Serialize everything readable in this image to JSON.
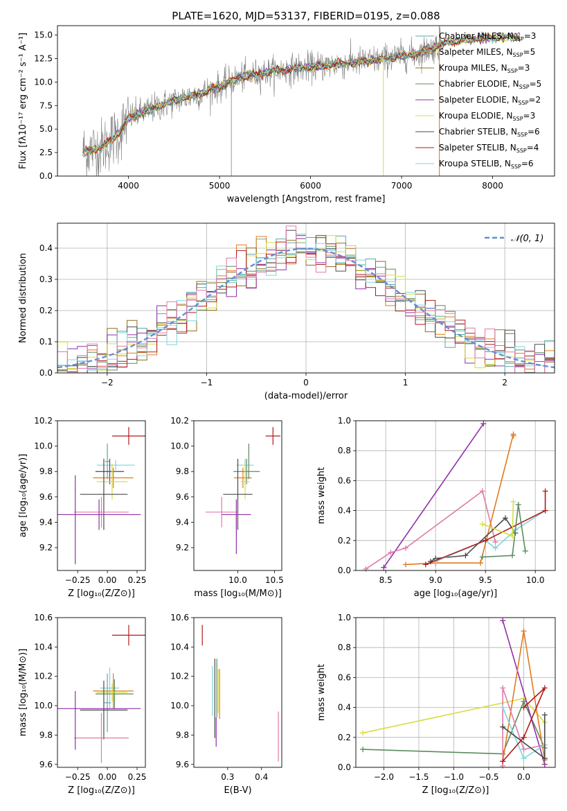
{
  "figure_title": "PLATE=1620, MJD=53137, FIBERID=0195, z=0.088",
  "colors": {
    "Chabrier MILES": "#5aa8a0",
    "Salpeter MILES": "#e07a1e",
    "Kroupa MILES": "#8c6d1a",
    "Chabrier ELODIE": "#5c8a5c",
    "Salpeter ELODIE": "#8e2fa6",
    "Kroupa ELODIE": "#d8dd40",
    "Chabrier STELIB": "#4a4a4a",
    "Salpeter STELIB": "#b01a1a",
    "Kroupa STELIB": "#7dd5db",
    "Kroupa ELODIE alt": "#e07aa8",
    "data": "#808080",
    "gaussian": "#5f8fd8"
  },
  "chart_data": [
    {
      "id": "spectrum",
      "type": "line",
      "title": "PLATE=1620, MJD=53137, FIBERID=0195, z=0.088",
      "xlabel": "wavelength [Angstrom, rest frame]",
      "ylabel": "Flux [fλ10⁻¹⁷ erg cm⁻² s⁻¹ A⁻¹]",
      "xlim": [
        3220,
        8680
      ],
      "ylim": [
        0,
        16
      ],
      "xticks": [
        4000,
        5000,
        6000,
        7000,
        8000
      ],
      "yticks": [
        0.0,
        2.5,
        5.0,
        7.5,
        10.0,
        12.5,
        15.0
      ],
      "ytick_labels": [
        "0.0",
        "2.5",
        "5.0",
        "7.5",
        "10.0",
        "12.5",
        "15.0"
      ],
      "grid": false,
      "legend_position": "right",
      "legend": [
        {
          "label": "Chabrier MILES, N",
          "sub": "SSP",
          "suffix": "=3",
          "color_key": "Chabrier MILES"
        },
        {
          "label": "Salpeter MILES, N",
          "sub": "SSP",
          "suffix": "=5",
          "color_key": "Salpeter MILES"
        },
        {
          "label": "Kroupa MILES, N",
          "sub": "SSP",
          "suffix": "=3",
          "color_key": "Kroupa MILES"
        },
        {
          "label": "Chabrier ELODIE, N",
          "sub": "SSP",
          "suffix": "=5",
          "color_key": "Chabrier ELODIE"
        },
        {
          "label": "Salpeter ELODIE, N",
          "sub": "SSP",
          "suffix": "=2",
          "color_key": "Salpeter ELODIE"
        },
        {
          "label": "Kroupa ELODIE, N",
          "sub": "SSP",
          "suffix": "=3",
          "color_key": "Kroupa ELODIE"
        },
        {
          "label": "Chabrier STELIB, N",
          "sub": "SSP",
          "suffix": "=6",
          "color_key": "Chabrier STELIB"
        },
        {
          "label": "Salpeter STELIB, N",
          "sub": "SSP",
          "suffix": "=4",
          "color_key": "Salpeter STELIB"
        },
        {
          "label": "Kroupa STELIB, N",
          "sub": "SSP",
          "suffix": "=6",
          "color_key": "Kroupa STELIB"
        }
      ],
      "continuum_points": [
        [
          3500,
          2.6
        ],
        [
          3700,
          3.0
        ],
        [
          3900,
          4.6
        ],
        [
          4000,
          6.2
        ],
        [
          4300,
          7.3
        ],
        [
          4500,
          8.0
        ],
        [
          4800,
          8.8
        ],
        [
          5000,
          9.5
        ],
        [
          5200,
          10.4
        ],
        [
          5500,
          11.0
        ],
        [
          5800,
          11.4
        ],
        [
          6000,
          11.6
        ],
        [
          6300,
          11.9
        ],
        [
          6600,
          12.2
        ],
        [
          6900,
          12.6
        ],
        [
          7200,
          13.1
        ],
        [
          7500,
          14.2
        ],
        [
          7800,
          14.6
        ],
        [
          8000,
          14.7
        ],
        [
          8300,
          14.8
        ]
      ]
    },
    {
      "id": "residuals",
      "type": "histogram",
      "xlabel": "(data-model)/error",
      "ylabel": "Normed distribution",
      "xlim": [
        -2.5,
        2.5
      ],
      "ylim": [
        0,
        0.48
      ],
      "xticks": [
        -2,
        -1,
        0,
        1,
        2
      ],
      "xtick_labels": [
        "−2",
        "−1",
        "0",
        "1",
        "2"
      ],
      "yticks": [
        0.0,
        0.1,
        0.2,
        0.3,
        0.4
      ],
      "ytick_labels": [
        "0.0",
        "0.1",
        "0.2",
        "0.3",
        "0.4"
      ],
      "grid": true,
      "legend_position": "top-right",
      "legend_label": "𝒩(0, 1)",
      "series": [
        {
          "color_key": "Chabrier MILES",
          "offset": 0.0
        },
        {
          "color_key": "Salpeter MILES",
          "offset": 0.02
        },
        {
          "color_key": "Kroupa MILES",
          "offset": -0.01
        },
        {
          "color_key": "Chabrier ELODIE",
          "offset": -0.02
        },
        {
          "color_key": "Salpeter ELODIE",
          "offset": 0.03
        },
        {
          "color_key": "Kroupa ELODIE",
          "offset": 0.01
        },
        {
          "color_key": "Chabrier STELIB",
          "offset": 0.02
        },
        {
          "color_key": "Salpeter STELIB",
          "offset": -0.03
        },
        {
          "color_key": "Kroupa STELIB",
          "offset": 0.0
        },
        {
          "color_key": "Kroupa ELODIE alt",
          "offset": 0.04
        }
      ]
    },
    {
      "id": "age_vs_Z",
      "type": "scatter",
      "xlabel": "Z [log₁₀(Z/Z⊙)]",
      "ylabel": "age  [log₁₀(age/yr)]",
      "xlim": [
        -0.42,
        0.32
      ],
      "ylim": [
        9.02,
        10.2
      ],
      "xticks": [
        -0.25,
        0.0,
        0.25
      ],
      "xtick_labels": [
        "−0.25",
        "0.00",
        "0.25"
      ],
      "yticks": [
        9.2,
        9.4,
        9.6,
        9.8,
        10.0,
        10.2
      ],
      "ytick_labels": [
        "9.2",
        "9.4",
        "9.6",
        "9.8",
        "10.0",
        "10.2"
      ],
      "grid": false,
      "points": [
        {
          "x": 0.18,
          "y": 10.08,
          "xerr": 0.14,
          "yerr": 0.07,
          "color_key": "Salpeter STELIB"
        },
        {
          "x": 0.07,
          "y": 9.85,
          "xerr": 0.16,
          "yerr": 0.04,
          "color_key": "Kroupa STELIB"
        },
        {
          "x": 0.0,
          "y": 9.88,
          "xerr": 0.02,
          "yerr": 0.14,
          "color_key": "Chabrier MILES"
        },
        {
          "x": 0.02,
          "y": 9.8,
          "xerr": 0.12,
          "yerr": 0.1,
          "color_key": "Chabrier STELIB"
        },
        {
          "x": 0.05,
          "y": 9.75,
          "xerr": 0.17,
          "yerr": 0.08,
          "color_key": "Salpeter MILES"
        },
        {
          "x": 0.04,
          "y": 9.72,
          "xerr": 0.13,
          "yerr": 0.14,
          "color_key": "Kroupa ELODIE"
        },
        {
          "x": -0.03,
          "y": 9.62,
          "xerr": 0.2,
          "yerr": 0.28,
          "color_key": "Chabrier STELIB"
        },
        {
          "x": -0.05,
          "y": 9.48,
          "xerr": 0.23,
          "yerr": 0.12,
          "color_key": "Kroupa ELODIE alt"
        },
        {
          "x": -0.07,
          "y": 9.46,
          "xerr": 0.35,
          "yerr": 0.12,
          "color_key": "Salpeter ELODIE"
        },
        {
          "x": -0.27,
          "y": 9.42,
          "xerr": 0.0,
          "yerr": 0.35,
          "color_key": "Salpeter ELODIE"
        }
      ]
    },
    {
      "id": "age_vs_mass",
      "type": "scatter",
      "xlabel": "mass [log₁₀(M/M⊙)]",
      "xlim": [
        9.4,
        10.6
      ],
      "ylim": [
        9.02,
        10.2
      ],
      "xticks": [
        10.0,
        10.5
      ],
      "xtick_labels": [
        "10.0",
        "10.5"
      ],
      "yticks": [
        9.2,
        9.4,
        9.6,
        9.8,
        10.0,
        10.2
      ],
      "ytick_labels": [
        "9.2",
        "9.4",
        "9.6",
        "9.8",
        "10.0",
        "10.2"
      ],
      "grid": false,
      "points": [
        {
          "x": 10.48,
          "y": 10.08,
          "xerr": 0.1,
          "yerr": 0.07,
          "color_key": "Salpeter STELIB"
        },
        {
          "x": 10.1,
          "y": 9.85,
          "xerr": 0.12,
          "yerr": 0.05,
          "color_key": "Kroupa STELIB"
        },
        {
          "x": 10.15,
          "y": 9.88,
          "xerr": 0.0,
          "yerr": 0.14,
          "color_key": "Chabrier ELODIE"
        },
        {
          "x": 10.12,
          "y": 9.8,
          "xerr": 0.18,
          "yerr": 0.1,
          "color_key": "Chabrier ELODIE"
        },
        {
          "x": 10.07,
          "y": 9.75,
          "xerr": 0.12,
          "yerr": 0.08,
          "color_key": "Salpeter MILES"
        },
        {
          "x": 10.1,
          "y": 9.72,
          "xerr": 0.06,
          "yerr": 0.14,
          "color_key": "Kroupa ELODIE"
        },
        {
          "x": 10.0,
          "y": 9.62,
          "xerr": 0.2,
          "yerr": 0.28,
          "color_key": "Chabrier STELIB"
        },
        {
          "x": 9.78,
          "y": 9.48,
          "xerr": 0.22,
          "yerr": 0.12,
          "color_key": "Kroupa ELODIE alt"
        },
        {
          "x": 9.98,
          "y": 9.46,
          "xerr": 0.2,
          "yerr": 0.12,
          "color_key": "Salpeter ELODIE"
        },
        {
          "x": 9.98,
          "y": 9.3,
          "xerr": 0.0,
          "yerr": 0.15,
          "color_key": "Salpeter ELODIE"
        }
      ]
    },
    {
      "id": "weight_vs_age",
      "type": "line",
      "xlabel": "age  [log₁₀(age/yr)]",
      "ylabel": "mass weight",
      "xlim": [
        8.2,
        10.2
      ],
      "ylim": [
        0,
        1
      ],
      "xticks": [
        8.5,
        9.0,
        9.5,
        10.0
      ],
      "xtick_labels": [
        "8.5",
        "9.0",
        "9.5",
        "10.0"
      ],
      "yticks": [
        0.0,
        0.2,
        0.4,
        0.6,
        0.8,
        1.0
      ],
      "ytick_labels": [
        "0.0",
        "0.2",
        "0.4",
        "0.6",
        "0.8",
        "1.0"
      ],
      "grid": true,
      "series": [
        {
          "color_key": "Salpeter ELODIE",
          "x": [
            8.48,
            9.48
          ],
          "y": [
            0.02,
            0.98
          ]
        },
        {
          "color_key": "Kroupa ELODIE alt",
          "x": [
            8.3,
            8.55,
            8.7,
            9.47,
            9.6
          ],
          "y": [
            0.01,
            0.12,
            0.15,
            0.53,
            0.19
          ]
        },
        {
          "color_key": "Salpeter MILES",
          "x": [
            8.7,
            9.0,
            9.45,
            9.78,
            9.78
          ],
          "y": [
            0.04,
            0.05,
            0.05,
            0.91,
            0.9
          ]
        },
        {
          "color_key": "Chabrier STELIB",
          "x": [
            8.95,
            9.0,
            9.3,
            9.7,
            9.8
          ],
          "y": [
            0.06,
            0.08,
            0.1,
            0.35,
            0.25
          ]
        },
        {
          "color_key": "Kroupa STELIB",
          "x": [
            9.0,
            9.5,
            9.6,
            9.8,
            10.1
          ],
          "y": [
            0.06,
            0.2,
            0.15,
            0.27,
            0.4
          ]
        },
        {
          "color_key": "Salpeter STELIB",
          "x": [
            8.9,
            9.5,
            10.1,
            10.1
          ],
          "y": [
            0.04,
            0.2,
            0.4,
            0.53
          ]
        },
        {
          "color_key": "Chabrier ELODIE",
          "x": [
            9.47,
            9.77,
            9.83,
            9.9
          ],
          "y": [
            0.09,
            0.1,
            0.44,
            0.13
          ]
        },
        {
          "color_key": "Kroupa ELODIE",
          "x": [
            9.47,
            9.77,
            9.78
          ],
          "y": [
            0.31,
            0.23,
            0.46
          ]
        }
      ]
    },
    {
      "id": "mass_vs_Z",
      "type": "scatter",
      "xlabel": "Z [log₁₀(Z/Z⊙)]",
      "ylabel": "mass [log₁₀(M/M⊙)]",
      "xlim": [
        -0.42,
        0.32
      ],
      "ylim": [
        9.58,
        10.6
      ],
      "xticks": [
        -0.25,
        0.0,
        0.25
      ],
      "xtick_labels": [
        "−0.25",
        "0.00",
        "0.25"
      ],
      "yticks": [
        9.6,
        9.8,
        10.0,
        10.2,
        10.4,
        10.6
      ],
      "ytick_labels": [
        "9.6",
        "9.8",
        "10.0",
        "10.2",
        "10.4",
        "10.6"
      ],
      "grid": false,
      "points": [
        {
          "x": 0.18,
          "y": 10.48,
          "xerr": 0.14,
          "yerr": 0.07,
          "color_key": "Salpeter STELIB"
        },
        {
          "x": 0.02,
          "y": 10.12,
          "xerr": 0.08,
          "yerr": 0.14,
          "color_key": "Kroupa STELIB"
        },
        {
          "x": 0.05,
          "y": 10.1,
          "xerr": 0.17,
          "yerr": 0.12,
          "color_key": "Salpeter MILES"
        },
        {
          "x": 0.06,
          "y": 10.08,
          "xerr": 0.16,
          "yerr": 0.1,
          "color_key": "Chabrier ELODIE"
        },
        {
          "x": 0.04,
          "y": 10.09,
          "xerr": 0.13,
          "yerr": 0.06,
          "color_key": "Kroupa ELODIE"
        },
        {
          "x": 0.0,
          "y": 10.02,
          "xerr": 0.03,
          "yerr": 0.2,
          "color_key": "Chabrier MILES"
        },
        {
          "x": -0.03,
          "y": 9.97,
          "xerr": 0.2,
          "yerr": 0.2,
          "color_key": "Chabrier STELIB"
        },
        {
          "x": -0.05,
          "y": 9.78,
          "xerr": 0.23,
          "yerr": 0.17,
          "color_key": "Kroupa ELODIE alt"
        },
        {
          "x": -0.07,
          "y": 9.98,
          "xerr": 0.35,
          "yerr": 0.0,
          "color_key": "Salpeter ELODIE"
        },
        {
          "x": -0.27,
          "y": 9.9,
          "xerr": 0.0,
          "yerr": 0.2,
          "color_key": "Salpeter ELODIE"
        }
      ]
    },
    {
      "id": "mass_vs_ebv",
      "type": "scatter",
      "xlabel": "E(B-V)",
      "xlim": [
        0.2,
        0.46
      ],
      "ylim": [
        9.58,
        10.6
      ],
      "xticks": [
        0.3,
        0.4
      ],
      "xtick_labels": [
        "0.3",
        "0.4"
      ],
      "yticks": [
        9.6,
        9.8,
        10.0,
        10.2,
        10.4,
        10.6
      ],
      "ytick_labels": [
        "9.6",
        "9.8",
        "10.0",
        "10.2",
        "10.4",
        "10.6"
      ],
      "grid": false,
      "points": [
        {
          "x": 0.225,
          "y": 10.48,
          "xerr": 0,
          "yerr": 0.07,
          "color_key": "Salpeter STELIB"
        },
        {
          "x": 0.255,
          "y": 10.1,
          "xerr": 0,
          "yerr": 0.17,
          "color_key": "Kroupa STELIB"
        },
        {
          "x": 0.262,
          "y": 10.05,
          "xerr": 0,
          "yerr": 0.27,
          "color_key": "Chabrier STELIB"
        },
        {
          "x": 0.268,
          "y": 10.12,
          "xerr": 0,
          "yerr": 0.2,
          "color_key": "Chabrier ELODIE"
        },
        {
          "x": 0.272,
          "y": 10.1,
          "xerr": 0,
          "yerr": 0.15,
          "color_key": "Kroupa ELODIE"
        },
        {
          "x": 0.276,
          "y": 10.08,
          "xerr": 0,
          "yerr": 0.17,
          "color_key": "Salpeter MILES"
        },
        {
          "x": 0.266,
          "y": 9.82,
          "xerr": 0,
          "yerr": 0.1,
          "color_key": "Salpeter ELODIE"
        },
        {
          "x": 0.45,
          "y": 9.79,
          "xerr": 0,
          "yerr": 0.17,
          "color_key": "Kroupa ELODIE alt"
        }
      ]
    },
    {
      "id": "weight_vs_Z",
      "type": "line",
      "xlabel": "Z [log₁₀(Z/Z⊙)]",
      "ylabel": "mass weight",
      "xlim": [
        -2.4,
        0.45
      ],
      "ylim": [
        0,
        1
      ],
      "xticks": [
        -2.0,
        -1.5,
        -1.0,
        -0.5,
        0.0
      ],
      "xtick_labels": [
        "−2.0",
        "−1.5",
        "−1.0",
        "−0.5",
        "0.0"
      ],
      "yticks": [
        0.0,
        0.2,
        0.4,
        0.6,
        0.8,
        1.0
      ],
      "ytick_labels": [
        "0.0",
        "0.2",
        "0.4",
        "0.6",
        "0.8",
        "1.0"
      ],
      "grid": true,
      "series": [
        {
          "color_key": "Kroupa ELODIE",
          "x": [
            -2.3,
            0.0,
            0.3
          ],
          "y": [
            0.23,
            0.46,
            0.3
          ]
        },
        {
          "color_key": "Chabrier ELODIE",
          "x": [
            -2.3,
            -0.3,
            0.0,
            0.3
          ],
          "y": [
            0.12,
            0.09,
            0.44,
            0.13
          ]
        },
        {
          "color_key": "Salpeter ELODIE",
          "x": [
            -0.3,
            0.3
          ],
          "y": [
            0.98,
            0.02
          ]
        },
        {
          "color_key": "Salpeter MILES",
          "x": [
            -0.3,
            0.0,
            0.3
          ],
          "y": [
            0.04,
            0.91,
            0.05
          ]
        },
        {
          "color_key": "Kroupa ELODIE alt",
          "x": [
            -0.3,
            -0.3,
            0.0,
            0.3
          ],
          "y": [
            0.01,
            0.53,
            0.12,
            0.15
          ]
        },
        {
          "color_key": "Kroupa STELIB",
          "x": [
            -0.3,
            0.0,
            0.3
          ],
          "y": [
            0.4,
            0.06,
            0.15
          ]
        },
        {
          "color_key": "Chabrier STELIB",
          "x": [
            -0.3,
            0.3,
            0.3
          ],
          "y": [
            0.27,
            0.06,
            0.35
          ]
        },
        {
          "color_key": "Salpeter STELIB",
          "x": [
            -0.3,
            0.0,
            0.3,
            0.0
          ],
          "y": [
            0.04,
            0.2,
            0.53,
            0.4
          ]
        }
      ]
    }
  ]
}
